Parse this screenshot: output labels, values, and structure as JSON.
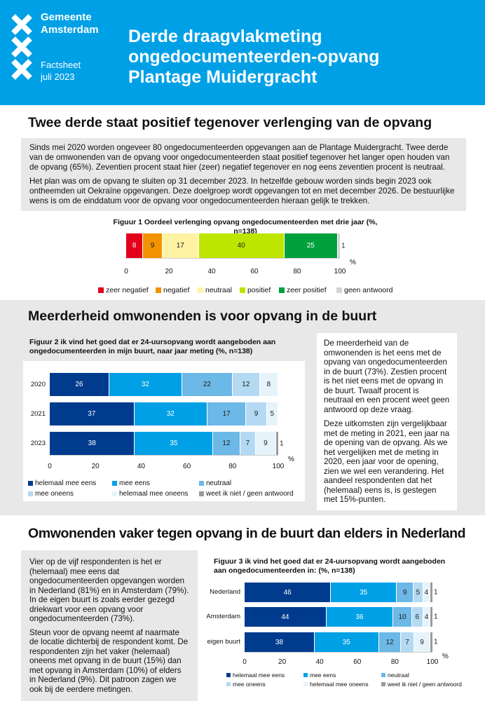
{
  "header": {
    "org_line1": "Gemeente",
    "org_line2": "Amsterdam",
    "doc_type": "Factsheet",
    "date": "juli 2023",
    "title_line1": "Derde draagvlakmeting",
    "title_line2": "ongedocumenteerden-opvang",
    "title_line3": "Plantage Muidergracht",
    "brand_color": "#00a0e6",
    "logo": "Gemeente Amsterdam XXX"
  },
  "section1": {
    "heading": "Twee derde staat positief tegenover verlenging van de opvang",
    "p1": "Sinds mei 2020 worden ongeveer 80 ongedocumenteerden opgevangen aan de Plantage Muidergracht. Twee derde van de omwonenden van de opvang voor ongedocumenteerden staat positief tegenover het langer open houden van de opvang (65%). Zeventien procent staat hier (zeer) negatief tegenover en nog eens zeventien procent is neutraal.",
    "p2": "Het plan was om de opvang te sluiten op 31 december 2023. In hetzelfde gebouw worden sinds begin 2023 ook ontheemden uit Oekraïne opgevangen. Deze doelgroep wordt opgevangen tot en met december 2026. De bestuurlijke wens is om de einddatum voor de opvang voor ongedocumenteerden hieraan gelijk te trekken."
  },
  "section2": {
    "heading": "Meerderheid omwonenden is voor opvang in de buurt",
    "p1": "De meerderheid van de omwonenden is het eens met de opvang van ongedocumenteerden in de buurt (73%). Zestien procent is het niet eens met de opvang in de buurt. Twaalf procent is neutraal en een procent weet geen antwoord op deze vraag.",
    "p2": "Deze uitkomsten zijn vergelijkbaar met de meting in 2021, een jaar na de opening van de opvang. Als we het vergelijken met de meting in 2020, een jaar voor de opening, zien we wel een verandering. Het aandeel respondenten dat het (helemaal) eens is, is gestegen met 15%-punten."
  },
  "section3": {
    "heading": "Omwonenden vaker tegen opvang in de buurt dan elders in Nederland",
    "p1": "Vier op de vijf respondenten is het er (helemaal) mee eens dat ongedocumenteerden opgevangen worden in Nederland (81%) en in Amsterdam (79%). In de eigen buurt is zoals eerder gezegd driekwart voor een opvang voor ongedocumenteerden (73%).",
    "p2": "Steun voor de opvang neemt af naarmate de locatie dichterbij de respondent komt. De respondenten zijn het vaker (helemaal) oneens met opvang in de buurt (15%) dan met opvang in Amsterdam (10%) of elders in Nederland (9%). Dit patroon zagen we ook bij de eerdere metingen."
  },
  "chart_data": [
    {
      "type": "bar",
      "stacked": true,
      "orientation": "horizontal",
      "title": "Figuur 1 Oordeel verlenging opvang ongedocumenteerden met drie jaar (%, n=138)",
      "unit": "%",
      "xlim": [
        0,
        100
      ],
      "xticks": [
        "0",
        "20",
        "40",
        "60",
        "80",
        "100"
      ],
      "legend_position": "bottom",
      "series": [
        {
          "name": "zeer negatief",
          "color": "#e3001b",
          "values": [
            8
          ]
        },
        {
          "name": "negatief",
          "color": "#f39200",
          "values": [
            9
          ]
        },
        {
          "name": "neutraal",
          "color": "#fff3a3",
          "values": [
            17
          ]
        },
        {
          "name": "positief",
          "color": "#bde500",
          "values": [
            40
          ]
        },
        {
          "name": "zeer positief",
          "color": "#00a03c",
          "values": [
            25
          ]
        },
        {
          "name": "geen antwoord",
          "color": "#d4d4d4",
          "values": [
            1
          ]
        }
      ]
    },
    {
      "type": "bar",
      "stacked": true,
      "orientation": "horizontal",
      "title": "Figuur 2 ik vind het goed dat er 24-uursopvang wordt aangeboden aan ongedocumenteerden in mijn buurt, naar jaar meting (%, n=138)",
      "unit": "%",
      "xlim": [
        0,
        100
      ],
      "xticks": [
        "0",
        "20",
        "40",
        "60",
        "80",
        "100"
      ],
      "legend_position": "bottom",
      "categories": [
        "2020",
        "2021",
        "2023"
      ],
      "series": [
        {
          "name": "helemaal mee eens",
          "color": "#003b8e",
          "values": [
            26,
            37,
            38
          ]
        },
        {
          "name": "mee eens",
          "color": "#00a0e6",
          "values": [
            32,
            32,
            35
          ]
        },
        {
          "name": "neutraal",
          "color": "#6cb8e6",
          "values": [
            22,
            17,
            12
          ]
        },
        {
          "name": "mee oneens",
          "color": "#b4daf3",
          "values": [
            12,
            9,
            7
          ]
        },
        {
          "name": "helemaal mee oneens",
          "color": "#e6f3fb",
          "values": [
            8,
            5,
            9
          ]
        },
        {
          "name": "weet ik niet / geen antwoord",
          "color": "#9a9a9a",
          "values": [
            0,
            0,
            1
          ]
        }
      ]
    },
    {
      "type": "bar",
      "stacked": true,
      "orientation": "horizontal",
      "title": "Figuur 3 ik vind het goed dat er 24-uursopvang wordt aangeboden aan ongedocumenteerden in: (%, n=138)",
      "unit": "%",
      "xlim": [
        0,
        100
      ],
      "xticks": [
        "0",
        "20",
        "40",
        "60",
        "80",
        "100"
      ],
      "legend_position": "bottom",
      "categories": [
        "Nederland",
        "Amsterdam",
        "eigen buurt"
      ],
      "series": [
        {
          "name": "helemaal mee eens",
          "color": "#003b8e",
          "values": [
            46,
            44,
            38
          ]
        },
        {
          "name": "mee eens",
          "color": "#00a0e6",
          "values": [
            35,
            36,
            35
          ]
        },
        {
          "name": "neutraal",
          "color": "#6cb8e6",
          "values": [
            9,
            10,
            12
          ]
        },
        {
          "name": "mee oneens",
          "color": "#b4daf3",
          "values": [
            5,
            6,
            7
          ]
        },
        {
          "name": "helemaal mee oneens",
          "color": "#e6f3fb",
          "values": [
            4,
            4,
            9
          ]
        },
        {
          "name": "weet ik niet / geen antwoord",
          "color": "#9a9a9a",
          "values": [
            1,
            1,
            1
          ]
        }
      ]
    }
  ]
}
